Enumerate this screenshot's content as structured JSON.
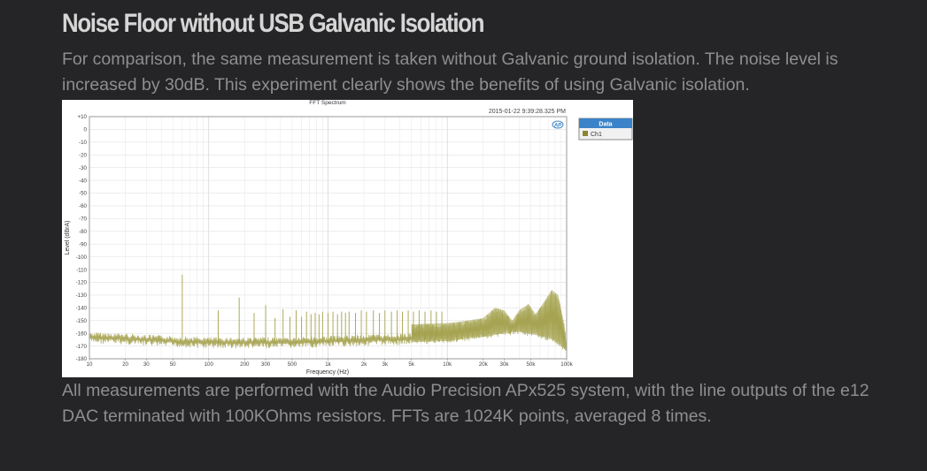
{
  "article": {
    "heading": "Noise Floor without USB Galvanic Isolation",
    "intro_line1": "For comparison, the same measurement is taken without Galvanic ground isolation. The noise level is",
    "intro_line2": "increased by 30dB. This experiment clearly shows the benefits of using Galvanic isolation.",
    "outro_line1": "All measurements are performed with the Audio Precision APx525 system, with the line outputs of the e12",
    "outro_line2": "DAC terminated with 100KOhms resistors. FFTs are 1024K points, averaged 8 times."
  },
  "colors": {
    "background": "#252528",
    "heading": "#d6d6d6",
    "body_text": "#8e8e8e",
    "series": "#a3a04a",
    "legend_header": "#3a83c8"
  },
  "chart_data": {
    "type": "line",
    "title": "FFT Spectrum",
    "timestamp": "2015-01-22 9:39:28.325 PM",
    "logo_text": "AP",
    "xlabel": "Frequency (Hz)",
    "ylabel": "Level (dBrA)",
    "xscale": "log",
    "xlim": [
      10,
      100000
    ],
    "ylim": [
      -180,
      10
    ],
    "grid": true,
    "x_ticks": [
      10,
      20,
      30,
      50,
      100,
      200,
      300,
      500,
      1000,
      2000,
      3000,
      5000,
      10000,
      20000,
      30000,
      50000,
      100000
    ],
    "x_tick_labels": [
      "10",
      "20",
      "30",
      "50",
      "100",
      "200",
      "300",
      "500",
      "1k",
      "2k",
      "3k",
      "5k",
      "10k",
      "20k",
      "30k",
      "50k",
      "100k"
    ],
    "y_ticks": [
      10,
      0,
      -10,
      -20,
      -30,
      -40,
      -50,
      -60,
      -70,
      -80,
      -90,
      -100,
      -110,
      -120,
      -130,
      -140,
      -150,
      -160,
      -170,
      -180
    ],
    "y_tick_labels": [
      "+10",
      "0",
      "-10",
      "-20",
      "-30",
      "-40",
      "-50",
      "-60",
      "-70",
      "-80",
      "-90",
      "-100",
      "-110",
      "-120",
      "-130",
      "-140",
      "-150",
      "-160",
      "-170",
      "-180"
    ],
    "legend": {
      "header": "Data",
      "position": "right",
      "entries": [
        {
          "label": "Ch1",
          "color": "#a3a04a"
        }
      ]
    },
    "series": [
      {
        "name": "Ch1",
        "noise_floor": [
          [
            10,
            -162
          ],
          [
            20,
            -163
          ],
          [
            30,
            -164
          ],
          [
            50,
            -165
          ],
          [
            100,
            -166
          ],
          [
            200,
            -166
          ],
          [
            500,
            -166
          ],
          [
            1000,
            -165
          ],
          [
            2000,
            -164
          ],
          [
            5000,
            -163
          ],
          [
            10000,
            -162
          ],
          [
            15000,
            -160
          ],
          [
            20000,
            -159
          ],
          [
            30000,
            -156
          ],
          [
            40000,
            -155
          ],
          [
            60000,
            -158
          ],
          [
            80000,
            -162
          ],
          [
            100000,
            -170
          ]
        ],
        "noise_bumps_upper": [
          [
            5000,
            -153
          ],
          [
            10000,
            -152
          ],
          [
            15000,
            -150
          ],
          [
            20000,
            -148
          ],
          [
            25000,
            -140
          ],
          [
            30000,
            -142
          ],
          [
            35000,
            -150
          ],
          [
            40000,
            -142
          ],
          [
            48000,
            -137
          ],
          [
            55000,
            -145
          ],
          [
            65000,
            -135
          ],
          [
            75000,
            -126
          ],
          [
            85000,
            -130
          ],
          [
            95000,
            -152
          ],
          [
            100000,
            -168
          ]
        ],
        "peaks": [
          [
            60,
            -114
          ],
          [
            120,
            -142
          ],
          [
            180,
            -132
          ],
          [
            240,
            -144
          ],
          [
            300,
            -138
          ],
          [
            360,
            -148
          ],
          [
            420,
            -141
          ],
          [
            480,
            -147
          ],
          [
            540,
            -142
          ],
          [
            600,
            -147
          ],
          [
            660,
            -143
          ],
          [
            720,
            -145
          ],
          [
            780,
            -144
          ],
          [
            840,
            -145
          ],
          [
            900,
            -143
          ],
          [
            1000,
            -144
          ],
          [
            1100,
            -143
          ],
          [
            1200,
            -145
          ],
          [
            1300,
            -143
          ],
          [
            1400,
            -144
          ],
          [
            1500,
            -143
          ],
          [
            1700,
            -144
          ],
          [
            1900,
            -142
          ],
          [
            2100,
            -143
          ],
          [
            2400,
            -142
          ],
          [
            2700,
            -144
          ],
          [
            3000,
            -142
          ],
          [
            3400,
            -143
          ],
          [
            3800,
            -142
          ],
          [
            4200,
            -143
          ],
          [
            4700,
            -142
          ],
          [
            5200,
            -143
          ],
          [
            5800,
            -142
          ],
          [
            6500,
            -143
          ],
          [
            7300,
            -142
          ],
          [
            8100,
            -143
          ],
          [
            9000,
            -143
          ]
        ]
      }
    ]
  }
}
